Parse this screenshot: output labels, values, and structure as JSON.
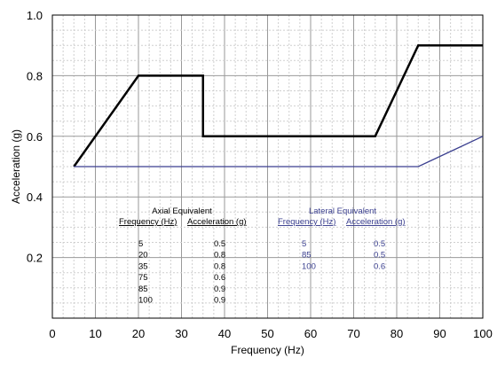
{
  "chart_data": {
    "type": "line",
    "title": "",
    "xlabel": "Frequency (Hz)",
    "ylabel": "Acceleration (g)",
    "xlim": [
      0,
      100
    ],
    "ylim": [
      0.0,
      1.0
    ],
    "x_ticks": [
      "0",
      "10",
      "20",
      "30",
      "40",
      "50",
      "60",
      "70",
      "80",
      "90",
      "100"
    ],
    "y_ticks": [
      "0.2",
      "0.4",
      "0.6",
      "0.8",
      "1.0"
    ],
    "grid": true,
    "series": [
      {
        "color": "#000000",
        "x": [
          5,
          20,
          35,
          35,
          75,
          85,
          100
        ],
        "y": [
          0.5,
          0.8,
          0.8,
          0.6,
          0.6,
          0.9,
          0.9
        ]
      },
      {
        "color": "#3a3f8f",
        "x": [
          5,
          85,
          100
        ],
        "y": [
          0.5,
          0.5,
          0.6
        ]
      }
    ],
    "tables": [
      {
        "title": "Axial Equivalent",
        "color": "#000000",
        "headers": [
          "Frequency (Hz)",
          "Acceleration (g)"
        ],
        "rows": [
          [
            "5",
            "0.5"
          ],
          [
            "20",
            "0.8"
          ],
          [
            "35",
            "0.8"
          ],
          [
            "75",
            "0.6"
          ],
          [
            "85",
            "0.9"
          ],
          [
            "100",
            "0.9"
          ]
        ]
      },
      {
        "title": "Lateral Equivalent",
        "color": "#3a3f8f",
        "headers": [
          "Frequency (Hz)",
          "Acceleration (g)"
        ],
        "rows": [
          [
            "5",
            "0.5"
          ],
          [
            "85",
            "0.5"
          ],
          [
            "100",
            "0.6"
          ]
        ]
      }
    ]
  }
}
